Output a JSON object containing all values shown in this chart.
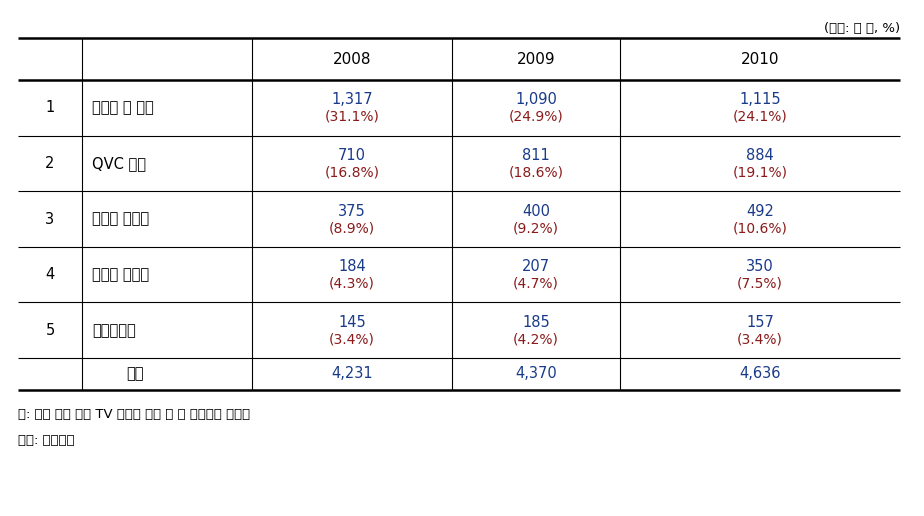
{
  "unit_label": "(단위: 억 엔, %)",
  "year_headers": [
    "2008",
    "2009",
    "2010"
  ],
  "rows": [
    {
      "rank": "1",
      "name": "주피터 샵 채널",
      "values": [
        "1,317",
        "1,090",
        "1,115"
      ],
      "pcts": [
        "(31.1%)",
        "(24.9%)",
        "(24.1%)"
      ]
    },
    {
      "rank": "2",
      "name": "QVC 저팬",
      "values": [
        "710",
        "811",
        "884"
      ],
      "pcts": [
        "(16.8%)",
        "(18.6%)",
        "(19.1%)"
      ]
    },
    {
      "rank": "3",
      "name": "자파넷 다카타",
      "values": [
        "375",
        "400",
        "492"
      ],
      "pcts": [
        "(8.9%)",
        "(9.2%)",
        "(10.6%)"
      ]
    },
    {
      "rank": "4",
      "name": "오쿠론 마케팅",
      "values": [
        "184",
        "207",
        "350"
      ],
      "pcts": [
        "(4.3%)",
        "(4.7%)",
        "(7.5%)"
      ]
    },
    {
      "rank": "5",
      "name": "에버라이프",
      "values": [
        "145",
        "185",
        "157"
      ],
      "pcts": [
        "(3.4%)",
        "(4.2%)",
        "(3.4%)"
      ]
    }
  ],
  "total_label": "전체",
  "total_values": [
    "4,231",
    "4,370",
    "4,636"
  ],
  "footnotes": [
    "주: 괄호 안은 전체 TV 홈쇼핑 시장 중 각 사업자의 점유율",
    "자료: 通販新聞"
  ],
  "value_color": "#1a3a8a",
  "pct_color": "#8b1a1a",
  "header_color": "#000000",
  "body_color": "#000000",
  "bg_color": "#ffffff"
}
